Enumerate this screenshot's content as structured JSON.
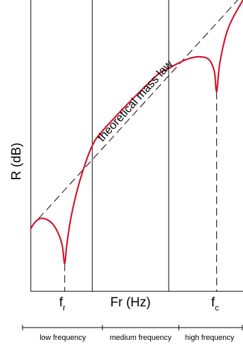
{
  "chart_data": {
    "type": "line",
    "title": "",
    "ylabel": "R (dB)",
    "xlabel": "Fr (Hz)",
    "xlim": [
      0,
      10
    ],
    "ylim": [
      0,
      10
    ],
    "grid": false,
    "legend": "none",
    "markers": [
      {
        "label": "f",
        "subscript": "r",
        "x": 1.6
      },
      {
        "label": "f",
        "subscript": "c",
        "x": 8.76
      }
    ],
    "regions": [
      {
        "label": "low frequency",
        "start": 0,
        "end": 2.9
      },
      {
        "label": "medium frequency",
        "start": 2.9,
        "end": 6.5
      },
      {
        "label": "high frequency",
        "start": 6.5,
        "end": 10
      }
    ],
    "annotation": "theoretical mass law",
    "mass_law": {
      "x": [
        0,
        10
      ],
      "y": [
        2.2,
        10.2
      ]
    },
    "series": [
      {
        "color": "#d2142b",
        "x": [
          0.0,
          0.2,
          0.45,
          0.8,
          1.1,
          1.35,
          1.5,
          1.6,
          1.7,
          1.9,
          2.2,
          2.6,
          2.9,
          3.2,
          4.0,
          5.0,
          6.0,
          6.5,
          7.0,
          7.5,
          8.0,
          8.4,
          8.65,
          8.76,
          8.9,
          9.2,
          9.5,
          9.8,
          10.0
        ],
        "y": [
          2.15,
          2.37,
          2.5,
          2.45,
          2.25,
          1.9,
          1.5,
          0.95,
          1.6,
          2.55,
          3.5,
          4.45,
          5.0,
          5.35,
          6.0,
          6.75,
          7.45,
          7.65,
          7.85,
          8.0,
          8.05,
          7.95,
          7.55,
          6.85,
          7.8,
          8.8,
          9.35,
          9.75,
          10.0
        ]
      }
    ]
  }
}
